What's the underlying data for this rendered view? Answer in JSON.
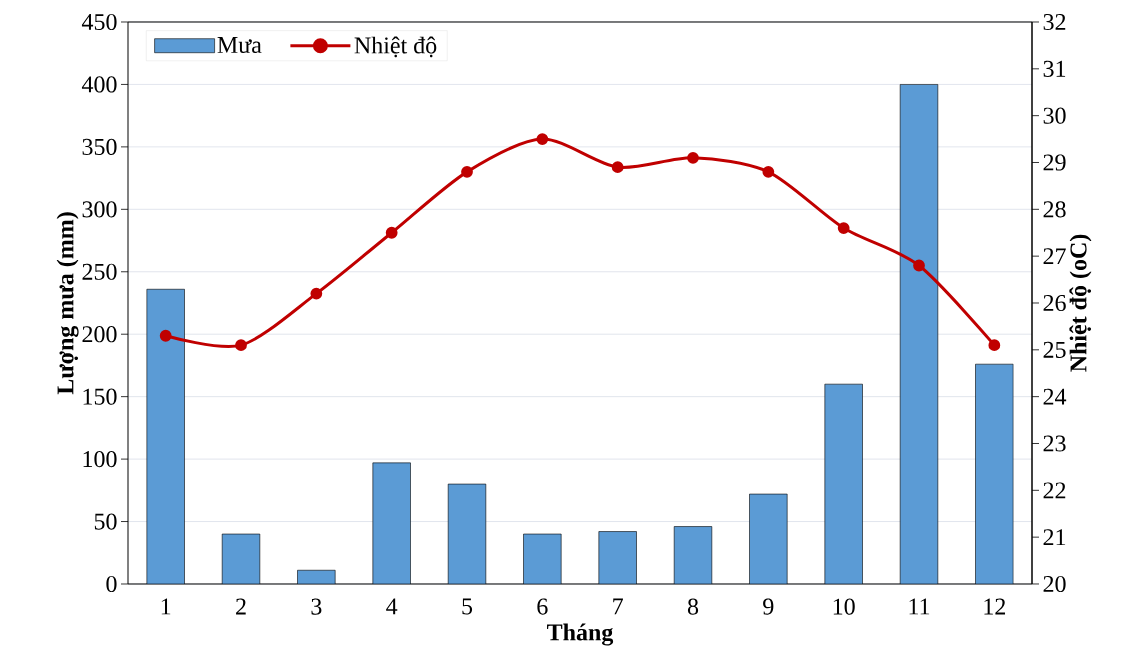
{
  "chart_data": {
    "type": "bar",
    "xlabel": "Tháng",
    "ylabel": "Lượng mưa (mm)",
    "y2label": "Nhiệt độ (oC)",
    "categories": [
      "1",
      "2",
      "3",
      "4",
      "5",
      "6",
      "7",
      "8",
      "9",
      "10",
      "11",
      "12"
    ],
    "series": [
      {
        "name": "Mưa",
        "color": "#5b9bd5",
        "values": [
          236,
          40,
          11,
          97,
          80,
          40,
          42,
          46,
          72,
          160,
          400,
          176
        ]
      },
      {
        "name": "Nhiệt độ",
        "type": "line",
        "axis": "y2",
        "color": "#c00000",
        "values": [
          25.3,
          25.1,
          26.2,
          27.5,
          28.8,
          29.5,
          28.9,
          29.1,
          28.8,
          27.6,
          26.8,
          25.1
        ]
      }
    ],
    "ylim": [
      0,
      450
    ],
    "yticks": [
      0,
      50,
      100,
      150,
      200,
      250,
      300,
      350,
      400,
      450
    ],
    "y2lim": [
      20,
      32
    ],
    "y2ticks": [
      20,
      21,
      22,
      23,
      24,
      25,
      26,
      27,
      28,
      29,
      30,
      31,
      32
    ],
    "grid": "y",
    "legend": "top left",
    "marker": "circle",
    "line_style": "solid"
  }
}
